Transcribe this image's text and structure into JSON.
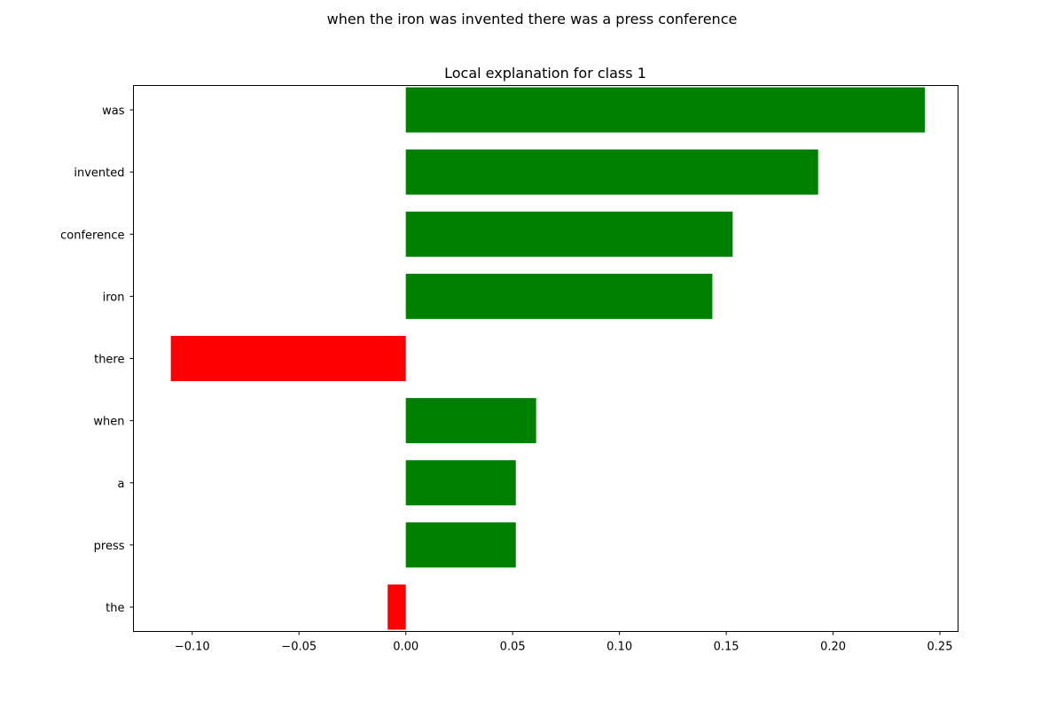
{
  "suptitle": "when the iron was invented there was a press conference",
  "chart_data": {
    "type": "bar",
    "orientation": "horizontal",
    "title": "Local explanation for class 1",
    "xlabel": "",
    "ylabel": "",
    "categories": [
      "was",
      "invented",
      "conference",
      "iron",
      "there",
      "when",
      "a",
      "press",
      "the"
    ],
    "values": [
      0.243,
      0.193,
      0.153,
      0.1435,
      -0.11,
      0.061,
      0.0515,
      0.0515,
      -0.0085
    ],
    "xlim": [
      -0.1275,
      0.2585
    ],
    "xticks": [
      -0.1,
      -0.05,
      0.0,
      0.05,
      0.1,
      0.15,
      0.2,
      0.25
    ],
    "xtick_labels": [
      "−0.10",
      "−0.05",
      "0.00",
      "0.05",
      "0.10",
      "0.15",
      "0.20",
      "0.25"
    ],
    "colors": {
      "positive": "#008000",
      "negative": "#ff0000"
    },
    "grid": false,
    "legend": "none"
  }
}
